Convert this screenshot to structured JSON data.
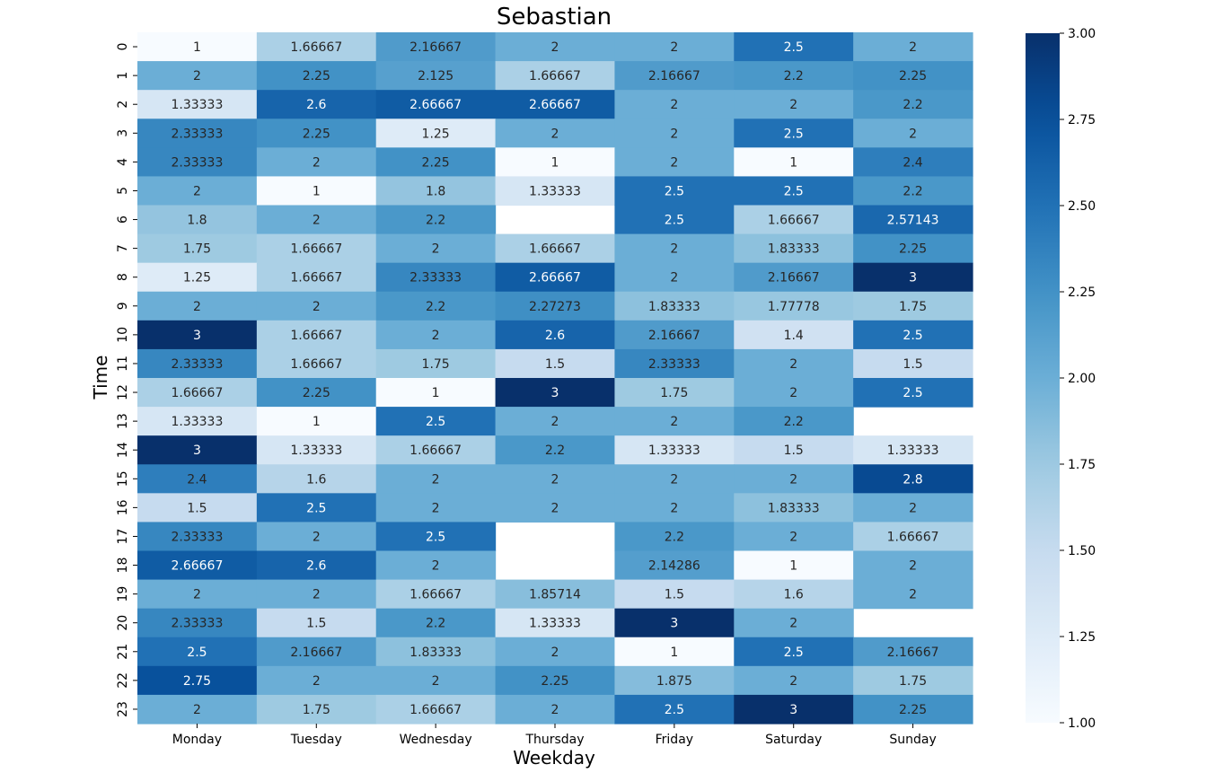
{
  "chart_data": {
    "type": "heatmap",
    "title": "Sebastian",
    "xlabel": "Weekday",
    "ylabel": "Time",
    "x_categories": [
      "Monday",
      "Tuesday",
      "Wednesday",
      "Thursday",
      "Friday",
      "Saturday",
      "Sunday"
    ],
    "y_categories": [
      "0",
      "1",
      "2",
      "3",
      "4",
      "5",
      "6",
      "7",
      "8",
      "9",
      "10",
      "11",
      "12",
      "13",
      "14",
      "15",
      "16",
      "17",
      "18",
      "19",
      "20",
      "21",
      "22",
      "23"
    ],
    "values": [
      [
        1,
        1.66667,
        2.16667,
        2,
        2,
        2.5,
        2
      ],
      [
        2,
        2.25,
        2.125,
        1.66667,
        2.16667,
        2.2,
        2.25
      ],
      [
        1.33333,
        2.6,
        2.66667,
        2.66667,
        2,
        2,
        2.2
      ],
      [
        2.33333,
        2.25,
        1.25,
        2,
        2,
        2.5,
        2
      ],
      [
        2.33333,
        2,
        2.25,
        1,
        2,
        1,
        2.4
      ],
      [
        2,
        1,
        1.8,
        1.33333,
        2.5,
        2.5,
        2.2
      ],
      [
        1.8,
        2,
        2.2,
        null,
        2.5,
        1.66667,
        2.57143
      ],
      [
        1.75,
        1.66667,
        2,
        1.66667,
        2,
        1.83333,
        2.25
      ],
      [
        1.25,
        1.66667,
        2.33333,
        2.66667,
        2,
        2.16667,
        3
      ],
      [
        2,
        2,
        2.2,
        2.27273,
        1.83333,
        1.77778,
        1.75
      ],
      [
        3,
        1.66667,
        2,
        2.6,
        2.16667,
        1.4,
        2.5
      ],
      [
        2.33333,
        1.66667,
        1.75,
        1.5,
        2.33333,
        2,
        1.5
      ],
      [
        1.66667,
        2.25,
        1,
        3,
        1.75,
        2,
        2.5
      ],
      [
        1.33333,
        1,
        2.5,
        2,
        2,
        2.2,
        null
      ],
      [
        3,
        1.33333,
        1.66667,
        2.2,
        1.33333,
        1.5,
        1.33333
      ],
      [
        2.4,
        1.6,
        2,
        2,
        2,
        2,
        2.8
      ],
      [
        1.5,
        2.5,
        2,
        2,
        2,
        1.83333,
        2
      ],
      [
        2.33333,
        2,
        2.5,
        null,
        2.2,
        2,
        1.66667
      ],
      [
        2.66667,
        2.6,
        2,
        null,
        2.14286,
        1,
        2
      ],
      [
        2,
        2,
        1.66667,
        1.85714,
        1.5,
        1.6,
        2
      ],
      [
        2.33333,
        1.5,
        2.2,
        1.33333,
        3,
        2,
        null
      ],
      [
        2.5,
        2.16667,
        1.83333,
        2,
        1,
        2.5,
        2.16667
      ],
      [
        2.75,
        2,
        2,
        2.25,
        1.875,
        2,
        1.75
      ],
      [
        2,
        1.75,
        1.66667,
        2,
        2.5,
        3,
        2.25
      ]
    ],
    "vmin": 1,
    "vmax": 3,
    "colormap": "Blues",
    "colorbar": {
      "ticks": [
        1.0,
        1.25,
        1.5,
        1.75,
        2.0,
        2.25,
        2.5,
        2.75,
        3.0
      ],
      "tick_labels": [
        "1.00",
        "1.25",
        "1.50",
        "1.75",
        "2.00",
        "2.25",
        "2.50",
        "2.75",
        "3.00"
      ]
    },
    "annotations": "cell values",
    "grid": false,
    "legend": "colorbar-right"
  }
}
